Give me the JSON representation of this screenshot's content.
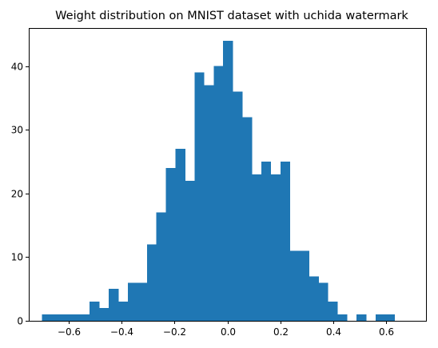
{
  "chart_data": {
    "type": "bar",
    "title": "Weight distribution on MNIST dataset with uchida watermark",
    "xlabel": "",
    "ylabel": "",
    "color": "#1f77b4",
    "xlim": [
      -0.75,
      0.75
    ],
    "ylim": [
      0,
      46
    ],
    "grid": false,
    "x_ticks": [
      -0.6,
      -0.4,
      -0.2,
      0.0,
      0.2,
      0.4,
      0.6
    ],
    "x_tick_labels": [
      "−0.6",
      "−0.4",
      "−0.2",
      "0.0",
      "0.2",
      "0.4",
      "0.6"
    ],
    "y_ticks": [
      0,
      10,
      20,
      30,
      40
    ],
    "y_tick_labels": [
      "0",
      "10",
      "20",
      "30",
      "40"
    ],
    "bins": [
      {
        "x0": -0.7,
        "x1": -0.664,
        "count": 1
      },
      {
        "x0": -0.664,
        "x1": -0.628,
        "count": 1
      },
      {
        "x0": -0.628,
        "x1": -0.592,
        "count": 1
      },
      {
        "x0": -0.592,
        "x1": -0.556,
        "count": 1
      },
      {
        "x0": -0.556,
        "x1": -0.52,
        "count": 1
      },
      {
        "x0": -0.52,
        "x1": -0.484,
        "count": 3
      },
      {
        "x0": -0.484,
        "x1": -0.448,
        "count": 2
      },
      {
        "x0": -0.448,
        "x1": -0.412,
        "count": 5
      },
      {
        "x0": -0.412,
        "x1": -0.376,
        "count": 3
      },
      {
        "x0": -0.376,
        "x1": -0.34,
        "count": 6
      },
      {
        "x0": -0.34,
        "x1": -0.304,
        "count": 6
      },
      {
        "x0": -0.304,
        "x1": -0.268,
        "count": 12
      },
      {
        "x0": -0.268,
        "x1": -0.232,
        "count": 17
      },
      {
        "x0": -0.232,
        "x1": -0.196,
        "count": 24
      },
      {
        "x0": -0.196,
        "x1": -0.16,
        "count": 27
      },
      {
        "x0": -0.16,
        "x1": -0.124,
        "count": 22
      },
      {
        "x0": -0.124,
        "x1": -0.088,
        "count": 39
      },
      {
        "x0": -0.088,
        "x1": -0.052,
        "count": 37
      },
      {
        "x0": -0.052,
        "x1": -0.016,
        "count": 40
      },
      {
        "x0": -0.016,
        "x1": 0.02,
        "count": 44
      },
      {
        "x0": 0.02,
        "x1": 0.056,
        "count": 36
      },
      {
        "x0": 0.056,
        "x1": 0.092,
        "count": 32
      },
      {
        "x0": 0.092,
        "x1": 0.128,
        "count": 23
      },
      {
        "x0": 0.128,
        "x1": 0.164,
        "count": 25
      },
      {
        "x0": 0.164,
        "x1": 0.2,
        "count": 23
      },
      {
        "x0": 0.2,
        "x1": 0.236,
        "count": 25
      },
      {
        "x0": 0.236,
        "x1": 0.272,
        "count": 11
      },
      {
        "x0": 0.272,
        "x1": 0.308,
        "count": 11
      },
      {
        "x0": 0.308,
        "x1": 0.344,
        "count": 7
      },
      {
        "x0": 0.344,
        "x1": 0.38,
        "count": 6
      },
      {
        "x0": 0.38,
        "x1": 0.416,
        "count": 3
      },
      {
        "x0": 0.416,
        "x1": 0.452,
        "count": 1
      },
      {
        "x0": 0.452,
        "x1": 0.488,
        "count": 0
      },
      {
        "x0": 0.488,
        "x1": 0.524,
        "count": 1
      },
      {
        "x0": 0.524,
        "x1": 0.56,
        "count": 0
      },
      {
        "x0": 0.56,
        "x1": 0.596,
        "count": 1
      },
      {
        "x0": 0.596,
        "x1": 0.632,
        "count": 1
      }
    ]
  }
}
